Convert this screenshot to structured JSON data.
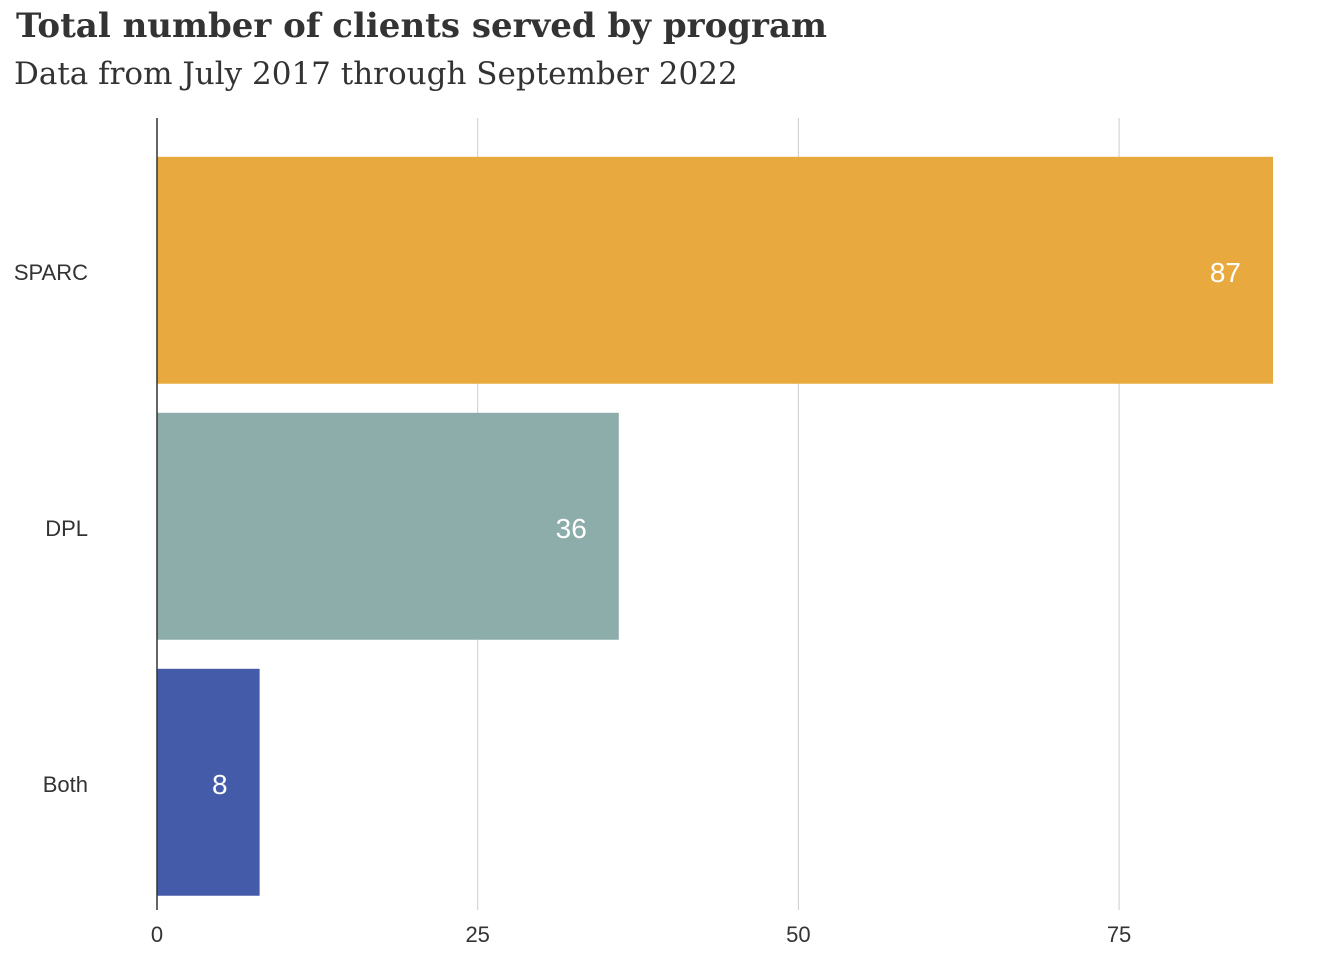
{
  "chart_data": {
    "type": "bar",
    "orientation": "horizontal",
    "title": "Total number of clients served by program",
    "subtitle": "Data from July 2017 through September 2022",
    "categories": [
      "SPARC",
      "DPL",
      "Both"
    ],
    "values": [
      87,
      36,
      8
    ],
    "colors": [
      "#E8AA3F",
      "#8CADA9",
      "#445BA9"
    ],
    "xlim": [
      0,
      87
    ],
    "xticks": [
      0,
      25,
      50,
      75
    ],
    "grid": true,
    "data_labels": true
  }
}
